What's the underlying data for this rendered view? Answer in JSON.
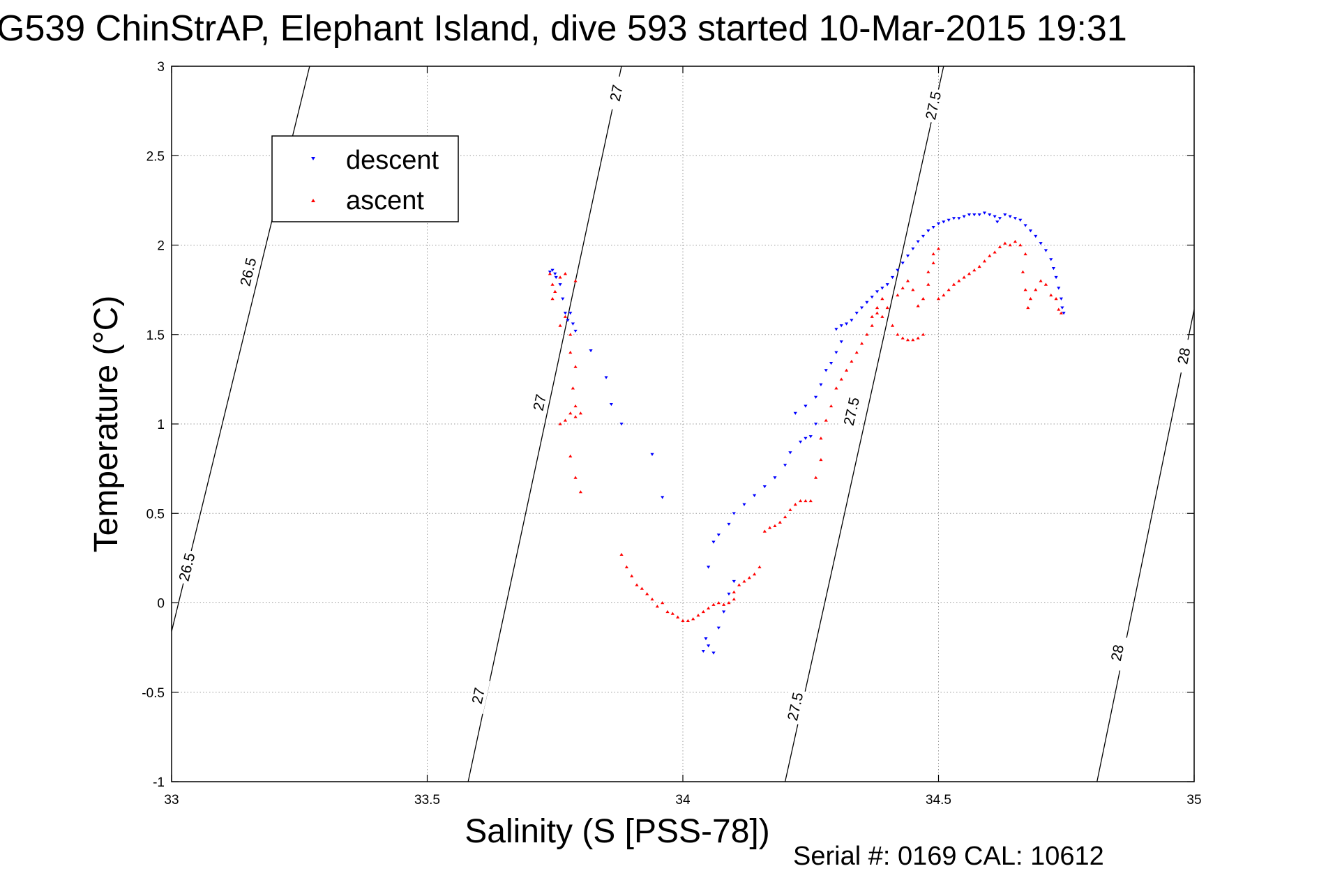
{
  "chart_data": {
    "type": "scatter",
    "title": "G539 ChinStrAP, Elephant Island, dive 593 started 10-Mar-2015 19:31",
    "xlabel": "Salinity (S [PSS-78])",
    "ylabel": "Temperature (°C)",
    "footer": "Serial #: 0169 CAL: 10612",
    "xlim": [
      33,
      35
    ],
    "ylim": [
      -1,
      3
    ],
    "x_ticks": [
      "33",
      "33.5",
      "34",
      "34.5",
      "35"
    ],
    "y_ticks": [
      "3",
      "2.5",
      "2",
      "1.5",
      "1",
      "0.5",
      "0",
      "-0.5",
      "-1"
    ],
    "grid": true,
    "legend_position": "top-left",
    "colors": {
      "descent": "#0000ff",
      "ascent": "#ff0000",
      "isopycnal": "#000000"
    },
    "isopycnals": [
      {
        "label": "26.5",
        "line": [
          [
            33.0,
            -0.16
          ],
          [
            33.27,
            3.0
          ]
        ],
        "label_positions": [
          [
            33.03,
            0.2
          ],
          [
            33.15,
            1.85
          ]
        ]
      },
      {
        "label": "27",
        "line": [
          [
            33.58,
            -1.0
          ],
          [
            33.88,
            3.0
          ]
        ],
        "label_positions": [
          [
            33.6,
            -0.52
          ],
          [
            33.72,
            1.12
          ],
          [
            33.87,
            2.85
          ]
        ]
      },
      {
        "label": "27.5",
        "line": [
          [
            34.2,
            -1.0
          ],
          [
            34.51,
            3.0
          ]
        ],
        "label_positions": [
          [
            34.22,
            -0.58
          ],
          [
            34.33,
            1.07
          ],
          [
            34.49,
            2.78
          ]
        ]
      },
      {
        "label": "28",
        "line": [
          [
            34.81,
            -1.0
          ],
          [
            35.0,
            1.64
          ]
        ],
        "label_positions": [
          [
            34.85,
            -0.28
          ],
          [
            34.98,
            1.38
          ]
        ]
      }
    ],
    "series": [
      {
        "name": "descent",
        "marker": "triangle-down",
        "points": [
          [
            33.74,
            1.85
          ],
          [
            33.745,
            1.86
          ],
          [
            33.75,
            1.84
          ],
          [
            33.752,
            1.82
          ],
          [
            33.76,
            1.78
          ],
          [
            33.765,
            1.7
          ],
          [
            33.77,
            1.62
          ],
          [
            33.775,
            1.58
          ],
          [
            33.78,
            1.62
          ],
          [
            33.785,
            1.56
          ],
          [
            33.79,
            1.52
          ],
          [
            33.82,
            1.41
          ],
          [
            33.85,
            1.26
          ],
          [
            33.86,
            1.11
          ],
          [
            33.88,
            1.0
          ],
          [
            33.94,
            0.83
          ],
          [
            33.96,
            0.59
          ],
          [
            34.04,
            -0.27
          ],
          [
            34.05,
            -0.24
          ],
          [
            34.045,
            -0.2
          ],
          [
            34.06,
            -0.28
          ],
          [
            34.07,
            -0.14
          ],
          [
            34.08,
            -0.05
          ],
          [
            34.09,
            0.05
          ],
          [
            34.1,
            0.12
          ],
          [
            34.05,
            0.2
          ],
          [
            34.06,
            0.34
          ],
          [
            34.07,
            0.38
          ],
          [
            34.09,
            0.44
          ],
          [
            34.1,
            0.5
          ],
          [
            34.12,
            0.55
          ],
          [
            34.14,
            0.6
          ],
          [
            34.16,
            0.65
          ],
          [
            34.18,
            0.7
          ],
          [
            34.2,
            0.77
          ],
          [
            34.21,
            0.84
          ],
          [
            34.23,
            0.9
          ],
          [
            34.24,
            0.92
          ],
          [
            34.25,
            0.93
          ],
          [
            34.26,
            1.0
          ],
          [
            34.22,
            1.06
          ],
          [
            34.24,
            1.1
          ],
          [
            34.26,
            1.15
          ],
          [
            34.27,
            1.22
          ],
          [
            34.28,
            1.3
          ],
          [
            34.29,
            1.34
          ],
          [
            34.3,
            1.4
          ],
          [
            34.31,
            1.46
          ],
          [
            34.3,
            1.53
          ],
          [
            34.31,
            1.55
          ],
          [
            34.32,
            1.56
          ],
          [
            34.33,
            1.58
          ],
          [
            34.34,
            1.62
          ],
          [
            34.35,
            1.65
          ],
          [
            34.36,
            1.68
          ],
          [
            34.37,
            1.71
          ],
          [
            34.38,
            1.74
          ],
          [
            34.39,
            1.76
          ],
          [
            34.4,
            1.78
          ],
          [
            34.41,
            1.82
          ],
          [
            34.42,
            1.86
          ],
          [
            34.43,
            1.9
          ],
          [
            34.44,
            1.94
          ],
          [
            34.45,
            1.98
          ],
          [
            34.46,
            2.02
          ],
          [
            34.47,
            2.05
          ],
          [
            34.48,
            2.08
          ],
          [
            34.49,
            2.1
          ],
          [
            34.5,
            2.12
          ],
          [
            34.51,
            2.13
          ],
          [
            34.52,
            2.14
          ],
          [
            34.53,
            2.15
          ],
          [
            34.54,
            2.15
          ],
          [
            34.55,
            2.16
          ],
          [
            34.56,
            2.17
          ],
          [
            34.57,
            2.17
          ],
          [
            34.58,
            2.17
          ],
          [
            34.59,
            2.18
          ],
          [
            34.6,
            2.17
          ],
          [
            34.61,
            2.16
          ],
          [
            34.615,
            2.13
          ],
          [
            34.62,
            2.15
          ],
          [
            34.63,
            2.17
          ],
          [
            34.64,
            2.16
          ],
          [
            34.65,
            2.15
          ],
          [
            34.66,
            2.14
          ],
          [
            34.67,
            2.11
          ],
          [
            34.68,
            2.08
          ],
          [
            34.69,
            2.05
          ],
          [
            34.7,
            2.01
          ],
          [
            34.71,
            1.97
          ],
          [
            34.72,
            1.92
          ],
          [
            34.725,
            1.87
          ],
          [
            34.73,
            1.82
          ],
          [
            34.735,
            1.76
          ],
          [
            34.74,
            1.7
          ],
          [
            34.742,
            1.65
          ],
          [
            34.745,
            1.62
          ]
        ]
      },
      {
        "name": "ascent",
        "marker": "triangle-up",
        "points": [
          [
            33.74,
            1.84
          ],
          [
            33.745,
            1.78
          ],
          [
            33.75,
            1.74
          ],
          [
            33.745,
            1.7
          ],
          [
            33.76,
            1.82
          ],
          [
            33.77,
            1.84
          ],
          [
            33.79,
            1.8
          ],
          [
            33.77,
            1.6
          ],
          [
            33.76,
            1.55
          ],
          [
            33.78,
            1.5
          ],
          [
            33.78,
            1.4
          ],
          [
            33.79,
            1.32
          ],
          [
            33.785,
            1.2
          ],
          [
            33.79,
            1.1
          ],
          [
            33.8,
            1.06
          ],
          [
            33.79,
            1.04
          ],
          [
            33.76,
            1.0
          ],
          [
            33.77,
            1.02
          ],
          [
            33.78,
            1.06
          ],
          [
            33.78,
            0.82
          ],
          [
            33.79,
            0.7
          ],
          [
            33.8,
            0.62
          ],
          [
            33.88,
            0.27
          ],
          [
            33.89,
            0.2
          ],
          [
            33.9,
            0.15
          ],
          [
            33.91,
            0.1
          ],
          [
            33.92,
            0.08
          ],
          [
            33.93,
            0.05
          ],
          [
            33.94,
            0.02
          ],
          [
            33.95,
            -0.02
          ],
          [
            33.96,
            0.0
          ],
          [
            33.97,
            -0.05
          ],
          [
            33.98,
            -0.06
          ],
          [
            33.99,
            -0.08
          ],
          [
            34.0,
            -0.1
          ],
          [
            34.01,
            -0.1
          ],
          [
            34.02,
            -0.09
          ],
          [
            34.03,
            -0.07
          ],
          [
            34.04,
            -0.05
          ],
          [
            34.05,
            -0.03
          ],
          [
            34.06,
            -0.01
          ],
          [
            34.07,
            0.0
          ],
          [
            34.08,
            -0.01
          ],
          [
            34.09,
            0.0
          ],
          [
            34.1,
            0.02
          ],
          [
            34.1,
            0.06
          ],
          [
            34.11,
            0.1
          ],
          [
            34.12,
            0.12
          ],
          [
            34.13,
            0.14
          ],
          [
            34.14,
            0.16
          ],
          [
            34.15,
            0.2
          ],
          [
            34.16,
            0.4
          ],
          [
            34.17,
            0.42
          ],
          [
            34.18,
            0.43
          ],
          [
            34.19,
            0.45
          ],
          [
            34.2,
            0.48
          ],
          [
            34.21,
            0.52
          ],
          [
            34.22,
            0.55
          ],
          [
            34.23,
            0.57
          ],
          [
            34.24,
            0.57
          ],
          [
            34.25,
            0.57
          ],
          [
            34.26,
            0.7
          ],
          [
            34.27,
            0.8
          ],
          [
            34.27,
            0.92
          ],
          [
            34.28,
            1.02
          ],
          [
            34.29,
            1.1
          ],
          [
            34.3,
            1.2
          ],
          [
            34.31,
            1.25
          ],
          [
            34.32,
            1.3
          ],
          [
            34.33,
            1.35
          ],
          [
            34.34,
            1.4
          ],
          [
            34.35,
            1.45
          ],
          [
            34.36,
            1.5
          ],
          [
            34.37,
            1.55
          ],
          [
            34.37,
            1.6
          ],
          [
            34.38,
            1.62
          ],
          [
            34.38,
            1.65
          ],
          [
            34.39,
            1.6
          ],
          [
            34.39,
            1.7
          ],
          [
            34.4,
            1.65
          ],
          [
            34.41,
            1.55
          ],
          [
            34.42,
            1.5
          ],
          [
            34.43,
            1.48
          ],
          [
            34.44,
            1.47
          ],
          [
            34.45,
            1.47
          ],
          [
            34.46,
            1.48
          ],
          [
            34.47,
            1.5
          ],
          [
            34.42,
            1.72
          ],
          [
            34.43,
            1.76
          ],
          [
            34.44,
            1.8
          ],
          [
            34.45,
            1.75
          ],
          [
            34.46,
            1.66
          ],
          [
            34.47,
            1.7
          ],
          [
            34.48,
            1.78
          ],
          [
            34.48,
            1.85
          ],
          [
            34.49,
            1.9
          ],
          [
            34.49,
            1.95
          ],
          [
            34.5,
            1.98
          ],
          [
            34.5,
            1.7
          ],
          [
            34.51,
            1.72
          ],
          [
            34.52,
            1.75
          ],
          [
            34.53,
            1.78
          ],
          [
            34.54,
            1.8
          ],
          [
            34.55,
            1.82
          ],
          [
            34.56,
            1.84
          ],
          [
            34.57,
            1.86
          ],
          [
            34.58,
            1.88
          ],
          [
            34.59,
            1.91
          ],
          [
            34.6,
            1.94
          ],
          [
            34.61,
            1.96
          ],
          [
            34.62,
            1.99
          ],
          [
            34.63,
            2.01
          ],
          [
            34.64,
            2.0
          ],
          [
            34.65,
            2.02
          ],
          [
            34.66,
            2.0
          ],
          [
            34.67,
            1.95
          ],
          [
            34.665,
            1.85
          ],
          [
            34.67,
            1.75
          ],
          [
            34.675,
            1.65
          ],
          [
            34.68,
            1.7
          ],
          [
            34.69,
            1.75
          ],
          [
            34.7,
            1.8
          ],
          [
            34.71,
            1.78
          ],
          [
            34.72,
            1.72
          ],
          [
            34.73,
            1.7
          ],
          [
            34.735,
            1.64
          ],
          [
            34.74,
            1.62
          ]
        ]
      }
    ]
  }
}
